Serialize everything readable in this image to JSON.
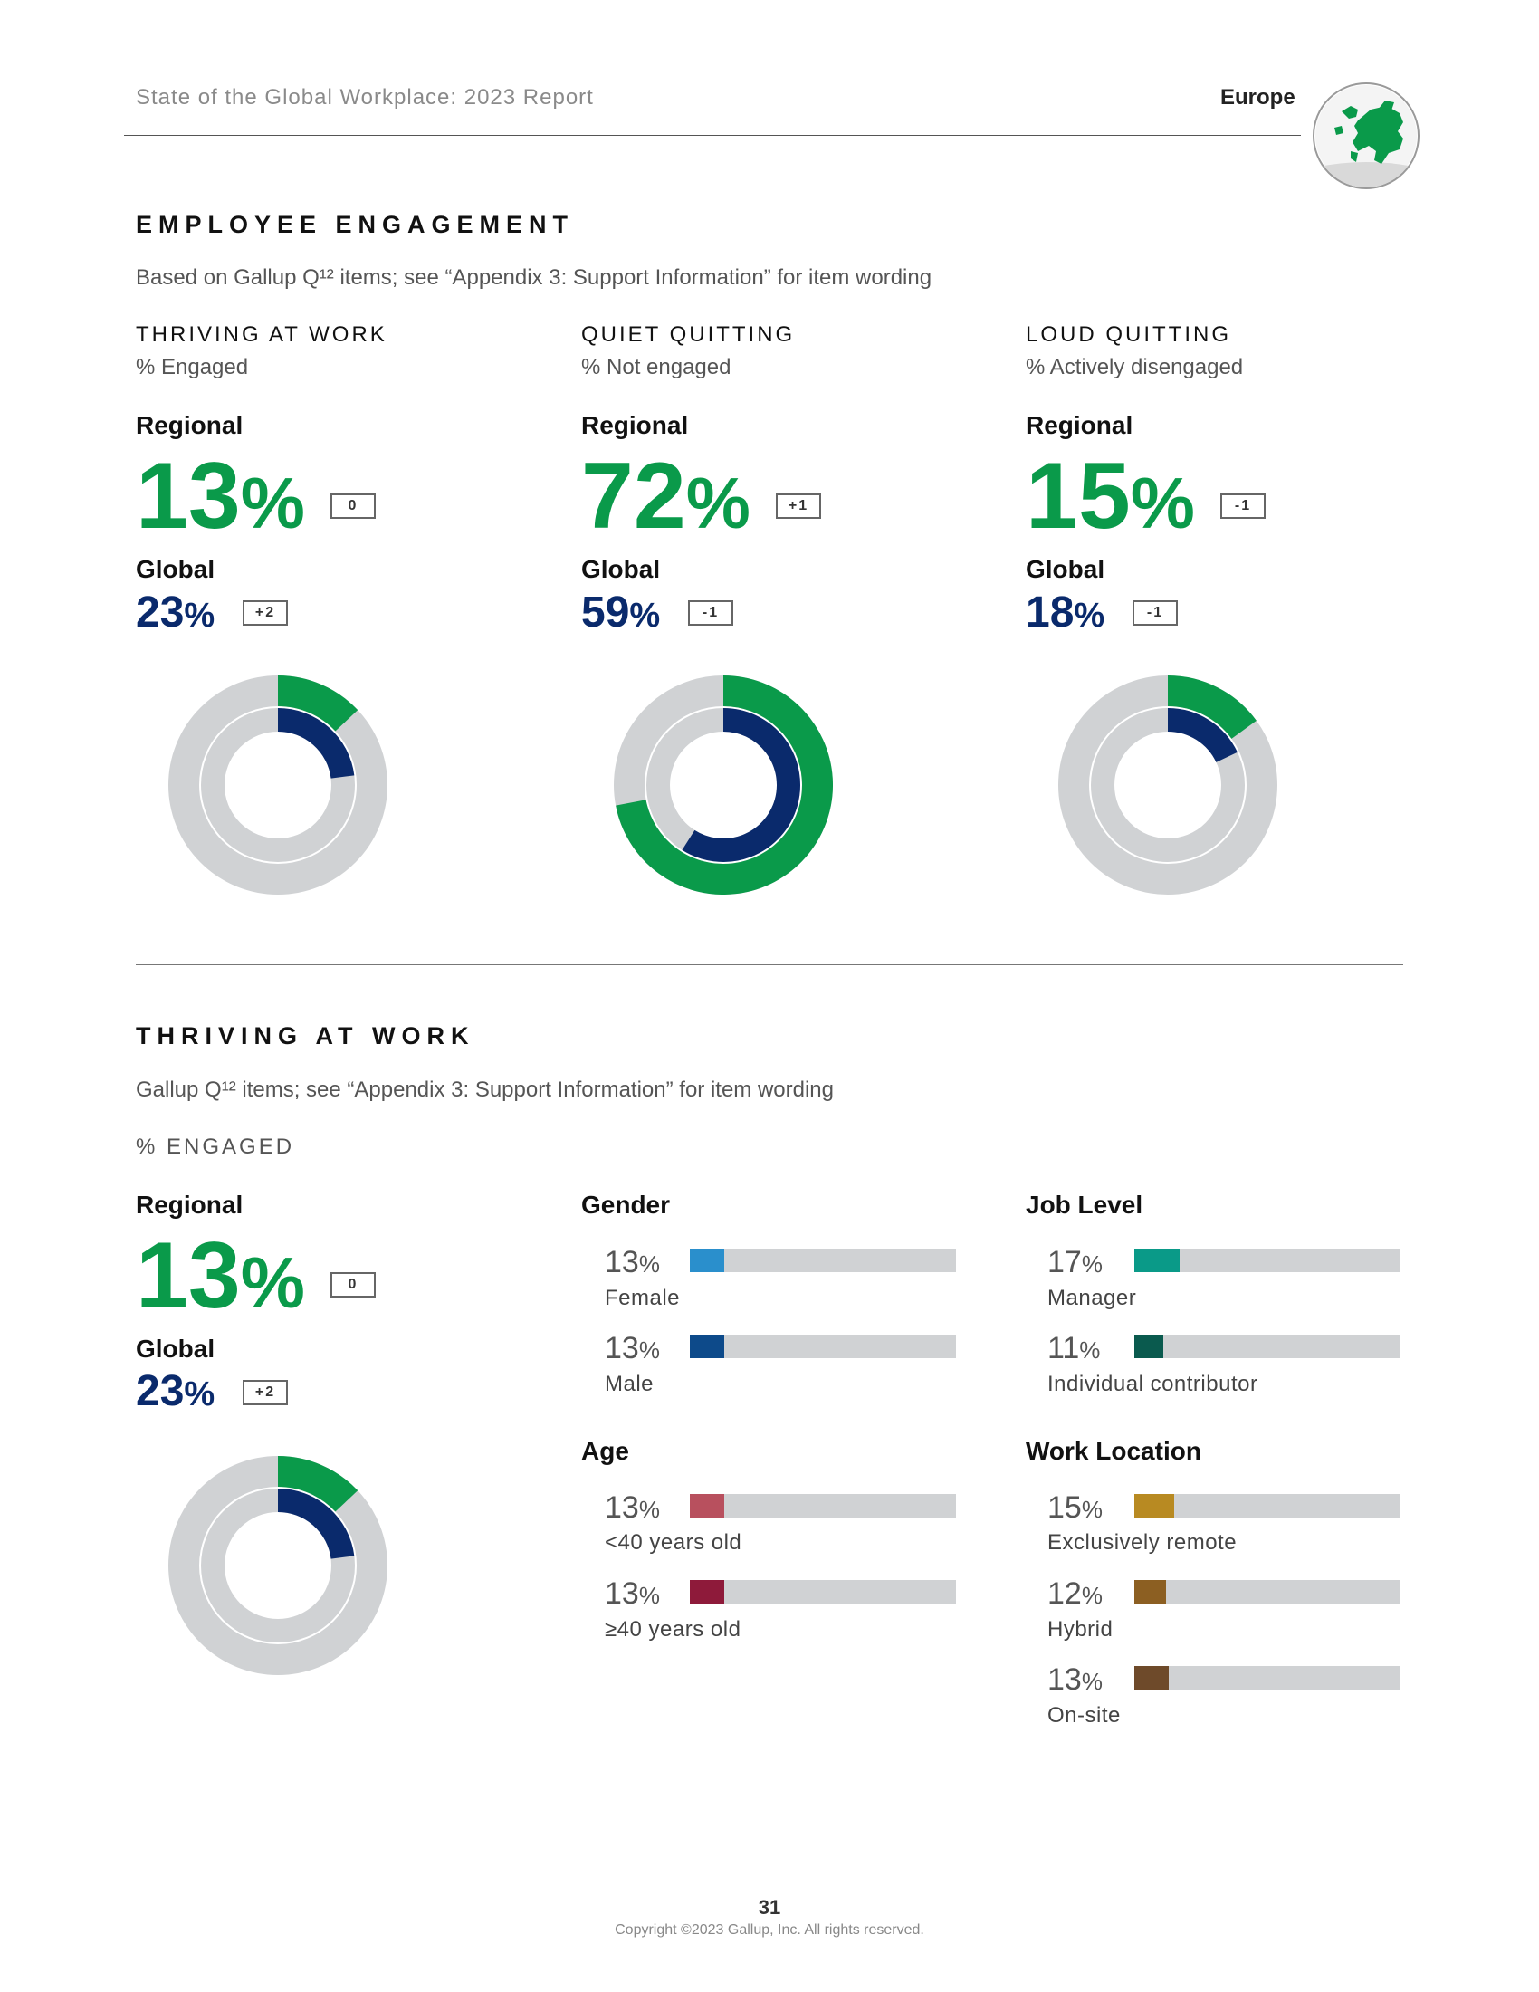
{
  "header": {
    "title": "State of the Global Workplace: 2023 Report",
    "region": "Europe",
    "globe_icon": "europe-map-icon"
  },
  "engagement": {
    "title": "EMPLOYEE ENGAGEMENT",
    "note": "Based on Gallup Q¹² items; see “Appendix 3: Support Information” for item wording",
    "columns": [
      {
        "title": "THRIVING AT WORK",
        "subtitle": "% Engaged",
        "regional_label": "Regional",
        "regional_value": "13",
        "regional_delta": "0",
        "global_label": "Global",
        "global_value": "23",
        "global_delta": "+2"
      },
      {
        "title": "QUIET QUITTING",
        "subtitle": "% Not engaged",
        "regional_label": "Regional",
        "regional_value": "72",
        "regional_delta": "+1",
        "global_label": "Global",
        "global_value": "59",
        "global_delta": "-1"
      },
      {
        "title": "LOUD QUITTING",
        "subtitle": "% Actively disengaged",
        "regional_label": "Regional",
        "regional_value": "15",
        "regional_delta": "-1",
        "global_label": "Global",
        "global_value": "18",
        "global_delta": "-1"
      }
    ],
    "pct_sign": "%"
  },
  "thriving": {
    "title": "THRIVING AT WORK",
    "note": "Gallup Q¹² items; see “Appendix 3: Support Information” for item wording",
    "measure": "% ENGAGED",
    "regional_label": "Regional",
    "regional_value": "13",
    "regional_delta": "0",
    "global_label": "Global",
    "global_value": "23",
    "global_delta": "+2",
    "groups": {
      "gender": {
        "title": "Gender",
        "items": [
          {
            "label": "Female",
            "value": "13"
          },
          {
            "label": "Male",
            "value": "13"
          }
        ]
      },
      "age": {
        "title": "Age",
        "items": [
          {
            "label": "<40 years old",
            "value": "13"
          },
          {
            "label": "≥40 years old",
            "value": "13"
          }
        ]
      },
      "job_level": {
        "title": "Job Level",
        "items": [
          {
            "label": "Manager",
            "value": "17"
          },
          {
            "label": "Individual contributor",
            "value": "11"
          }
        ]
      },
      "work_location": {
        "title": "Work Location",
        "items": [
          {
            "label": "Exclusively remote",
            "value": "15"
          },
          {
            "label": "Hybrid",
            "value": "12"
          },
          {
            "label": "On-site",
            "value": "13"
          }
        ]
      }
    }
  },
  "colors": {
    "green": "#0a9a4a",
    "navy": "#0a2a6c",
    "track": "#d0d2d4",
    "female": "#2a8fcc",
    "male": "#0d4a8a",
    "under40": "#b8505e",
    "over40": "#8e1a3a",
    "manager": "#0a9a88",
    "ic": "#0a5a4e",
    "remote": "#b88a22",
    "hybrid": "#8c5f22",
    "onsite": "#6e4a2a"
  },
  "chart_data": [
    {
      "type": "pie",
      "title": "THRIVING AT WORK",
      "series": [
        {
          "name": "Regional",
          "values": [
            13
          ]
        },
        {
          "name": "Global",
          "values": [
            23
          ]
        }
      ],
      "ylim": [
        0,
        100
      ]
    },
    {
      "type": "pie",
      "title": "QUIET QUITTING",
      "series": [
        {
          "name": "Regional",
          "values": [
            72
          ]
        },
        {
          "name": "Global",
          "values": [
            59
          ]
        }
      ],
      "ylim": [
        0,
        100
      ]
    },
    {
      "type": "pie",
      "title": "LOUD QUITTING",
      "series": [
        {
          "name": "Regional",
          "values": [
            15
          ]
        },
        {
          "name": "Global",
          "values": [
            18
          ]
        }
      ],
      "ylim": [
        0,
        100
      ]
    },
    {
      "type": "pie",
      "title": "THRIVING AT WORK (% ENGAGED)",
      "series": [
        {
          "name": "Regional",
          "values": [
            13
          ]
        },
        {
          "name": "Global",
          "values": [
            23
          ]
        }
      ],
      "ylim": [
        0,
        100
      ]
    },
    {
      "type": "bar",
      "title": "Gender",
      "categories": [
        "Female",
        "Male"
      ],
      "values": [
        13,
        13
      ],
      "ylim": [
        0,
        100
      ]
    },
    {
      "type": "bar",
      "title": "Age",
      "categories": [
        "<40 years old",
        "≥40 years old"
      ],
      "values": [
        13,
        13
      ],
      "ylim": [
        0,
        100
      ]
    },
    {
      "type": "bar",
      "title": "Job Level",
      "categories": [
        "Manager",
        "Individual contributor"
      ],
      "values": [
        17,
        11
      ],
      "ylim": [
        0,
        100
      ]
    },
    {
      "type": "bar",
      "title": "Work Location",
      "categories": [
        "Exclusively remote",
        "Hybrid",
        "On-site"
      ],
      "values": [
        15,
        12,
        13
      ],
      "ylim": [
        0,
        100
      ]
    }
  ],
  "footer": {
    "page_number": "31",
    "copyright": "Copyright ©2023 Gallup, Inc. All rights reserved."
  }
}
